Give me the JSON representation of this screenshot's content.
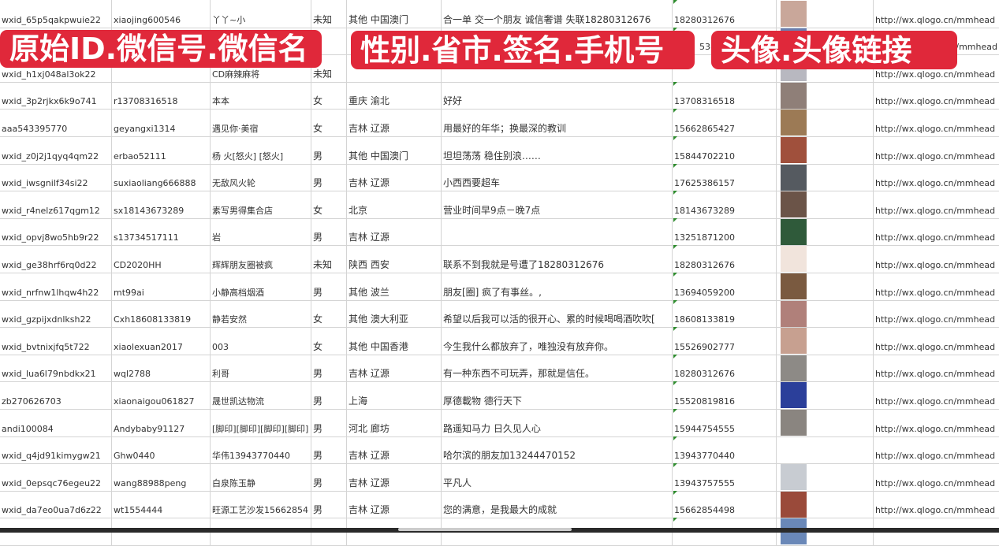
{
  "overlays": [
    "原始ID.微信号.微信名",
    "性别.省市.签名.手机号",
    "头像.头像链接"
  ],
  "rows": [
    {
      "id": "wxid_65p5qakpwuie22",
      "wechat": "xiaojing600546",
      "name": "丫丫~小",
      "gender": "未知",
      "region": "其他 中国澳门",
      "signature": "合一单 交一个朋友 诚信奢谱 失联18280312676",
      "phone": "18280312676",
      "avatar_color": "#c9a79a",
      "link": "http://wx.qlogo.cn/mmhead"
    },
    {
      "id": "",
      "wechat": "",
      "name": "",
      "gender": "",
      "region": "",
      "signature": "",
      "phone": "5386",
      "avatar_color": "#6a7fb0",
      "link": "/mmhead"
    },
    {
      "id": "wxid_h1xj048al3ok22",
      "wechat": "",
      "name": "CD麻辣麻将",
      "gender": "未知",
      "region": "",
      "signature": "",
      "phone": "",
      "avatar_color": "#b8b8c0",
      "link": "http://wx.qlogo.cn/mmhead"
    },
    {
      "id": "wxid_3p2rjkx6k9o741",
      "wechat": "r13708316518",
      "name": "本本",
      "gender": "女",
      "region": "重庆 渝北",
      "signature": "好好",
      "phone": "13708316518",
      "avatar_color": "#8f7f78",
      "link": "http://wx.qlogo.cn/mmhead"
    },
    {
      "id": "aaa543395770",
      "wechat": "geyangxi1314",
      "name": "遇见你·美宿",
      "gender": "女",
      "region": "吉林 辽源",
      "signature": "用最好的年华；换最深的教训",
      "phone": "15662865427",
      "avatar_color": "#9c7a55",
      "link": "http://wx.qlogo.cn/mmhead"
    },
    {
      "id": "wxid_z0j2j1qyq4qm22",
      "wechat": "erbao52111",
      "name": "杨 火[怒火] [怒火]",
      "gender": "男",
      "region": "其他 中国澳门",
      "signature": "坦坦荡荡 稳住别浪……",
      "phone": "15844702210",
      "avatar_color": "#a0503c",
      "link": "http://wx.qlogo.cn/mmhead"
    },
    {
      "id": "wxid_iwsgnilf34si22",
      "wechat": "suxiaoliang666888",
      "name": "无敌风火轮",
      "gender": "男",
      "region": "吉林 辽源",
      "signature": "小西西要超车",
      "phone": "17625386157",
      "avatar_color": "#555a60",
      "link": "http://wx.qlogo.cn/mmhead"
    },
    {
      "id": "wxid_r4nelz617qgm12",
      "wechat": "sx18143673289",
      "name": "素写男得集合店",
      "gender": "女",
      "region": "北京",
      "signature": "营业时间早9点－晚7点",
      "phone": "18143673289",
      "avatar_color": "#6b5448",
      "link": "http://wx.qlogo.cn/mmhead"
    },
    {
      "id": "wxid_opvj8wo5hb9r22",
      "wechat": "s13734517111",
      "name": "岩",
      "gender": "男",
      "region": "吉林 辽源",
      "signature": "",
      "phone": "13251871200",
      "avatar_color": "#2f5a3a",
      "link": "http://wx.qlogo.cn/mmhead"
    },
    {
      "id": "wxid_ge38hrf6rq0d22",
      "wechat": "CD2020HH",
      "name": "辉辉朋友圈被疯",
      "gender": "未知",
      "region": "陕西 西安",
      "signature": "联系不到我就是号遭了18280312676",
      "phone": "18280312676",
      "avatar_color": "#f1e4dc",
      "link": "http://wx.qlogo.cn/mmhead"
    },
    {
      "id": "wxid_nrfnw1lhqw4h22",
      "wechat": "mt99ai",
      "name": "小静高档烟酒",
      "gender": "男",
      "region": "其他 波兰",
      "signature": "朋友[圈] 疯了有事丝。,",
      "phone": "13694059200",
      "avatar_color": "#7a5a40",
      "link": "http://wx.qlogo.cn/mmhead"
    },
    {
      "id": "wxid_gzpijxdnlksh22",
      "wechat": "Cxh18608133819",
      "name": "静若安然",
      "gender": "女",
      "region": "其他 澳大利亚",
      "signature": "希望以后我可以活的很开心、累的时候喝喝酒吹吹[",
      "phone": "18608133819",
      "avatar_color": "#b0807a",
      "link": "http://wx.qlogo.cn/mmhead"
    },
    {
      "id": "wxid_bvtnixjfq5t722",
      "wechat": "xiaolexuan2017",
      "name": "003",
      "gender": "女",
      "region": "其他 中国香港",
      "signature": "今生我什么都放弃了，唯独没有放弃你。",
      "phone": "15526902777",
      "avatar_color": "#c7a090",
      "link": "http://wx.qlogo.cn/mmhead"
    },
    {
      "id": "wxid_lua6l79nbdkx21",
      "wechat": "wql2788",
      "name": "利哥",
      "gender": "男",
      "region": "吉林 辽源",
      "signature": "有一种东西不可玩弄，那就是信任。",
      "phone": "18280312676",
      "avatar_color": "#8d8a86",
      "link": "http://wx.qlogo.cn/mmhead"
    },
    {
      "id": "zb270626703",
      "wechat": "xiaonaigou061827",
      "name": "晟世凯达物流",
      "gender": "男",
      "region": "上海",
      "signature": "厚德載物 德行天下",
      "phone": "15520819816",
      "avatar_color": "#2b3f9a",
      "link": "http://wx.qlogo.cn/mmhead"
    },
    {
      "id": "andi100084",
      "wechat": "Andybaby91127",
      "name": "[脚印][脚印][脚印][脚印]",
      "gender": "男",
      "region": "河北 廊坊",
      "signature": "路遥知马力 日久见人心",
      "phone": "15944754555",
      "avatar_color": "#8a8580",
      "link": "http://wx.qlogo.cn/mmhead"
    },
    {
      "id": "wxid_q4jd91kimygw21",
      "wechat": "Ghw0440",
      "name": "华伟13943770440",
      "gender": "男",
      "region": "吉林 辽源",
      "signature": "哈尔滨的朋友加13244470152",
      "phone": "13943770440",
      "avatar_color": "#ffffff",
      "link": "http://wx.qlogo.cn/mmhead"
    },
    {
      "id": "wxid_0epsqc76egeu22",
      "wechat": "wang88988peng",
      "name": "白泉陈玉静",
      "gender": "男",
      "region": "吉林 辽源",
      "signature": "平凡人",
      "phone": "13943757555",
      "avatar_color": "#c8ccd2",
      "link": "http://wx.qlogo.cn/mmhead"
    },
    {
      "id": "wxid_da7eo0ua7d6z22",
      "wechat": "wt1554444",
      "name": "旺源工艺沙发15662854",
      "gender": "男",
      "region": "吉林 辽源",
      "signature": "您的满意，是我最大的成就",
      "phone": "15662854498",
      "avatar_color": "#9a4a3a",
      "link": "http://wx.qlogo.cn/mmhead"
    },
    {
      "id": "",
      "wechat": "",
      "name": "",
      "gender": "",
      "region": "",
      "signature": "",
      "phone": "",
      "avatar_color": "#6a88b8",
      "link": ""
    }
  ]
}
